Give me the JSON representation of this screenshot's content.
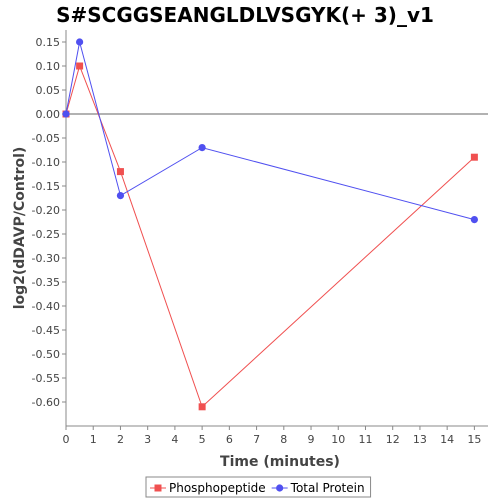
{
  "chart_data": {
    "type": "line",
    "title": "S#SCGGSEANGLDLVSGYK(+ 3)_v1",
    "xlabel": "Time (minutes)",
    "ylabel": "log2(dDAVP/Control)",
    "xlim": [
      0,
      15.5
    ],
    "ylim": [
      -0.65,
      0.175
    ],
    "x_ticks": [
      0,
      1,
      2,
      3,
      4,
      5,
      6,
      7,
      8,
      9,
      10,
      11,
      12,
      13,
      14,
      15
    ],
    "y_ticks": [
      0.15,
      0.1,
      0.05,
      0.0,
      -0.05,
      -0.1,
      -0.15,
      -0.2,
      -0.25,
      -0.3,
      -0.35,
      -0.4,
      -0.45,
      -0.5,
      -0.55,
      -0.6
    ],
    "zero_line": true,
    "grid": false,
    "legend_position": "bottom",
    "series": [
      {
        "name": "Phosphopeptide",
        "color": "#f05050",
        "marker": "square",
        "x": [
          0,
          0.5,
          2,
          5,
          15
        ],
        "y": [
          0.0,
          0.1,
          -0.12,
          -0.61,
          -0.09
        ]
      },
      {
        "name": "Total Protein",
        "color": "#5050f0",
        "marker": "circle",
        "x": [
          0,
          0.5,
          2,
          5,
          15
        ],
        "y": [
          0.0,
          0.15,
          -0.17,
          -0.07,
          -0.22
        ]
      }
    ]
  }
}
